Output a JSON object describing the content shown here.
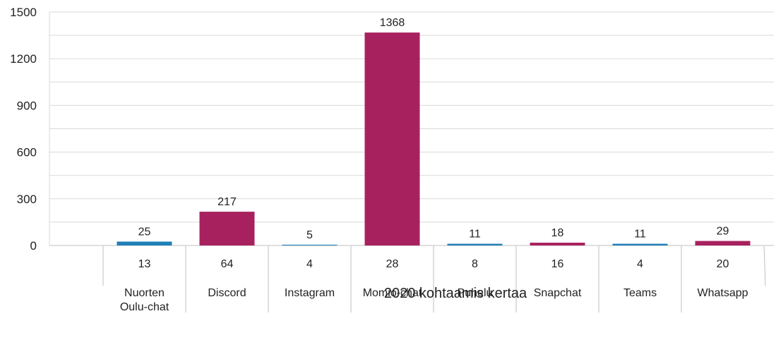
{
  "chart_data": {
    "type": "bar",
    "categories": [
      [
        "Nuorten",
        "Oulu-chat"
      ],
      [
        "Discord"
      ],
      [
        "Instagram"
      ],
      [
        "Momio-chat"
      ],
      [
        "Puhelu"
      ],
      [
        "Snapchat"
      ],
      [
        "Teams"
      ],
      [
        "Whatsapp"
      ]
    ],
    "values": [
      25,
      217,
      5,
      1368,
      11,
      18,
      11,
      29
    ],
    "secondary_values": [
      13,
      64,
      4,
      28,
      8,
      16,
      4,
      20
    ],
    "bar_colors": [
      "#1F7FB8",
      "#A8215F",
      "#1F7FB8",
      "#A8215F",
      "#1F7FB8",
      "#A8215F",
      "#1F7FB8",
      "#A8215F"
    ],
    "yticks": [
      0,
      300,
      600,
      900,
      1200,
      1500
    ],
    "ylim": [
      0,
      1500
    ],
    "grid": true,
    "xlabel": "2020 kohtaamis kertaa",
    "title": "",
    "ylabel": ""
  }
}
